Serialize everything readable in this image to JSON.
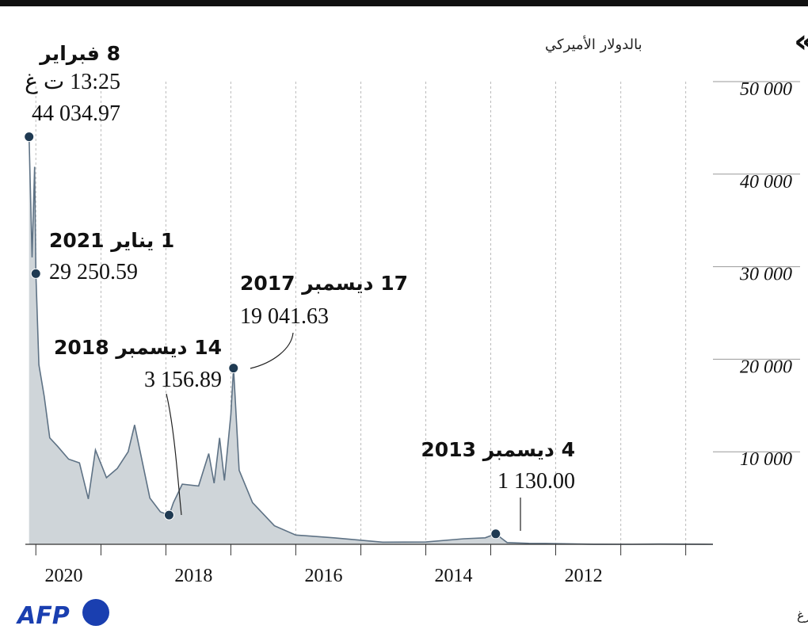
{
  "header": {
    "title": "عملة «بتكوين»",
    "subtitle": "بالدولار الأميركي"
  },
  "footer": {
    "source": "المصدر: بلومبرغ",
    "logo_text": "AFP"
  },
  "colors": {
    "line": "#5e7285",
    "area": "#cfd5d9",
    "marker": "#1f3a52",
    "grid": "#bbbbbb",
    "logo_dot": "#1a3fb0"
  },
  "chart_data": {
    "type": "area",
    "x_axis": {
      "direction": "right-to-left",
      "range": [
        "2010-08-01",
        "2021-03-01"
      ],
      "tick_labels": [
        "2020",
        "2018",
        "2016",
        "2014",
        "2012"
      ],
      "ticks": [
        "2020-01-01",
        "2018-01-01",
        "2016-01-01",
        "2014-01-01",
        "2012-01-01"
      ]
    },
    "y_axis": {
      "range": [
        0,
        50000
      ],
      "tick_values": [
        10000,
        20000,
        30000,
        40000,
        50000
      ],
      "tick_labels": [
        "10 000",
        "20 000",
        "30 000",
        "40 000",
        "50 000"
      ],
      "position": "right"
    },
    "grid": "vertical dashed",
    "series": [
      {
        "values": [
          [
            "2010-08-01",
            0.07
          ],
          [
            "2011-06-01",
            25
          ],
          [
            "2011-11-01",
            3
          ],
          [
            "2012-06-01",
            6
          ],
          [
            "2013-03-01",
            90
          ],
          [
            "2013-06-01",
            100
          ],
          [
            "2013-10-01",
            190
          ],
          [
            "2013-12-04",
            1130
          ],
          [
            "2014-02-01",
            700
          ],
          [
            "2014-06-01",
            600
          ],
          [
            "2015-01-01",
            250
          ],
          [
            "2015-09-01",
            230
          ],
          [
            "2016-06-01",
            700
          ],
          [
            "2017-01-01",
            1000
          ],
          [
            "2017-05-01",
            2000
          ],
          [
            "2017-09-01",
            4500
          ],
          [
            "2017-11-15",
            8000
          ],
          [
            "2017-12-17",
            19041.63
          ],
          [
            "2018-01-01",
            14000
          ],
          [
            "2018-02-06",
            6900
          ],
          [
            "2018-03-05",
            11500
          ],
          [
            "2018-04-05",
            6600
          ],
          [
            "2018-05-05",
            9800
          ],
          [
            "2018-07-01",
            6300
          ],
          [
            "2018-10-01",
            6500
          ],
          [
            "2018-11-20",
            4500
          ],
          [
            "2018-12-14",
            3156.89
          ],
          [
            "2019-02-01",
            3500
          ],
          [
            "2019-04-01",
            5000
          ],
          [
            "2019-06-26",
            12900
          ],
          [
            "2019-08-01",
            10000
          ],
          [
            "2019-10-01",
            8200
          ],
          [
            "2019-12-01",
            7200
          ],
          [
            "2020-02-01",
            10200
          ],
          [
            "2020-03-12",
            4900
          ],
          [
            "2020-05-01",
            8800
          ],
          [
            "2020-07-01",
            9200
          ],
          [
            "2020-09-01",
            10600
          ],
          [
            "2020-10-15",
            11500
          ],
          [
            "2020-11-15",
            16000
          ],
          [
            "2020-12-15",
            19400
          ],
          [
            "2021-01-01",
            29250.59
          ],
          [
            "2021-01-08",
            40800
          ],
          [
            "2021-01-22",
            31000
          ],
          [
            "2021-02-08",
            44034.97
          ]
        ]
      }
    ],
    "annotations": [
      {
        "date": "2021-02-08",
        "value": 44034.97,
        "title": "8 فبراير",
        "time": "13:25 ت غ",
        "value_label": "44 034.97"
      },
      {
        "date": "2021-01-01",
        "value": 29250.59,
        "title": "1 يناير 2021",
        "value_label": "29 250.59"
      },
      {
        "date": "2017-12-17",
        "value": 19041.63,
        "title": "17 ديسمبر 2017",
        "value_label": "19 041.63"
      },
      {
        "date": "2018-12-14",
        "value": 3156.89,
        "title": "14 ديسمبر 2018",
        "value_label": "3 156.89"
      },
      {
        "date": "2013-12-04",
        "value": 1130.0,
        "title": "4 ديسمبر 2013",
        "value_label": "1 130.00"
      }
    ]
  }
}
